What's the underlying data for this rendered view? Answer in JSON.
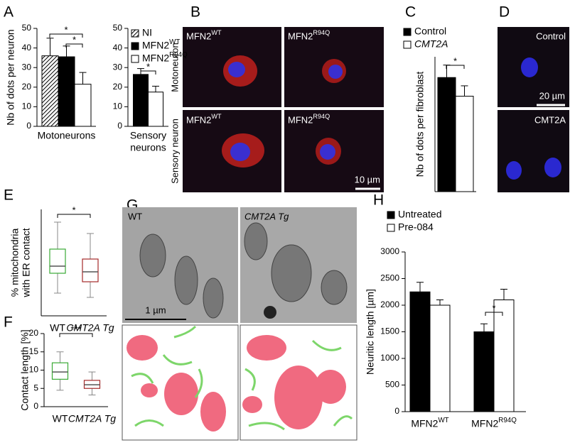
{
  "chart_data": [
    {
      "type": "bar",
      "panel": "A",
      "ylabel": "Nb of dots per neuron",
      "xlabel": [
        "Motoneurons"
      ],
      "ylim": [
        0,
        50
      ],
      "yticks": [
        0,
        10,
        20,
        30,
        40,
        50
      ],
      "legend": true,
      "series": [
        {
          "name": "NI",
          "color": "#ffffff",
          "pattern": "hatch",
          "values": [
            36
          ],
          "errors": [
            9
          ]
        },
        {
          "name": "MFN2WT",
          "color": "#000000",
          "values": [
            35.5
          ],
          "errors": [
            5.5
          ]
        },
        {
          "name": "MFN2R94Q",
          "color": "#ffffff",
          "values": [
            21.5
          ],
          "errors": [
            6
          ]
        }
      ],
      "annotations": [
        "*",
        "*"
      ]
    },
    {
      "type": "bar",
      "xlabel": [
        "Sensory",
        "neurons"
      ],
      "ylim": [
        0,
        50
      ],
      "yticks": [
        0,
        10,
        20,
        30,
        40,
        50
      ],
      "series": [
        {
          "color": "#000000",
          "values": [
            26.5
          ],
          "errors": [
            3
          ]
        },
        {
          "color": "#ffffff",
          "values": [
            17.5
          ],
          "errors": [
            3
          ]
        }
      ],
      "annotations": [
        "*"
      ]
    },
    {
      "type": "bar",
      "panel": "C",
      "ylabel": "Nb of dots per fibroblast",
      "ylim": [
        0,
        65
      ],
      "legend": true,
      "series": [
        {
          "name": "Control",
          "color": "#000000",
          "values": [
            55
          ],
          "errors": [
            6
          ]
        },
        {
          "name": "CMT2A",
          "color": "#ffffff",
          "values": [
            46
          ],
          "errors": [
            5
          ]
        }
      ],
      "annotations": [
        "*"
      ]
    },
    {
      "type": "box",
      "panel": "E",
      "ylabel": [
        "% mitochondria",
        "with ER contact"
      ],
      "categories": [
        "WT",
        "CMT2A Tg"
      ],
      "ylim": [
        0,
        75
      ],
      "colors": [
        "#3aaa35",
        "#a52a2a"
      ],
      "boxes": [
        {
          "whisker_low": 16,
          "q1": 30,
          "median": 35,
          "q3": 47,
          "whisker_high": 66
        },
        {
          "whisker_low": 13,
          "q1": 24,
          "median": 31,
          "q3": 40,
          "whisker_high": 58
        }
      ],
      "annotations": [
        "*"
      ]
    },
    {
      "type": "box",
      "panel": "F",
      "ylabel": "Contact length [%]",
      "categories": [
        "WT",
        "CMT2A Tg"
      ],
      "ylim": [
        0,
        20
      ],
      "yticks": [
        0,
        5,
        10,
        15,
        20
      ],
      "colors": [
        "#3aaa35",
        "#a52a2a"
      ],
      "boxes": [
        {
          "whisker_low": 4.5,
          "q1": 7.5,
          "median": 9.5,
          "q3": 12,
          "whisker_high": 15
        },
        {
          "whisker_low": 3.2,
          "q1": 5,
          "median": 6,
          "q3": 7.2,
          "whisker_high": 9.5
        }
      ],
      "annotations": [
        "***"
      ]
    },
    {
      "type": "bar",
      "panel": "H",
      "ylabel": "Neuritic length [µm]",
      "categories": [
        "MFN2WT",
        "MFN2R94Q"
      ],
      "ylim": [
        0,
        3000
      ],
      "yticks": [
        0,
        500,
        1000,
        1500,
        2000,
        2500,
        3000
      ],
      "legend": true,
      "series": [
        {
          "name": "Untreated",
          "color": "#000000",
          "values": [
            2250,
            1500
          ],
          "errors": [
            180,
            150
          ]
        },
        {
          "name": "Pre-084",
          "color": "#ffffff",
          "values": [
            2000,
            2100
          ],
          "errors": [
            100,
            200
          ]
        }
      ],
      "annotations": [
        "*"
      ]
    }
  ],
  "images": {
    "B": {
      "panel": "B",
      "tiles": [
        "MFN2WT",
        "MFN2R94Q",
        "MFN2WT",
        "MFN2R94Q"
      ],
      "row_labels": [
        "Motoneuron",
        "Sensory neuron"
      ],
      "scale": "10 µm"
    },
    "D": {
      "panel": "D",
      "tiles": [
        "Control",
        "CMT2A"
      ],
      "scale": "20 µm"
    },
    "G": {
      "panel": "G",
      "tiles": [
        "WT",
        "CMT2A Tg"
      ],
      "scale": "1 µm"
    }
  }
}
